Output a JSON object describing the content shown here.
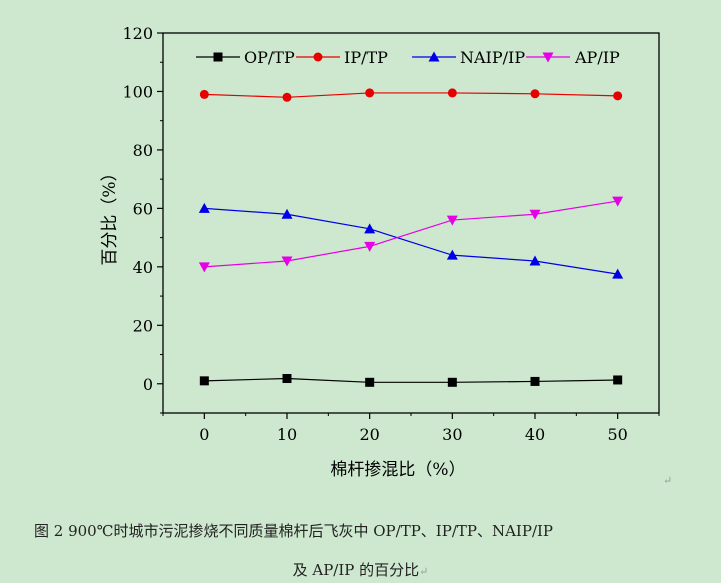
{
  "colors": {
    "background": "#cde8cf",
    "axis": "#000000",
    "OP/TP": "#000000",
    "IP/TP": "#e60000",
    "NAIP/IP": "#0000e6",
    "AP/IP": "#e600e6"
  },
  "caption": {
    "line1": "图 2 900℃时城市污泥掺烧不同质量棉杆后飞灰中 OP/TP、IP/TP、NAIP/IP",
    "line2": "及 AP/IP 的百分比",
    "return_mark": "↵"
  },
  "chart_data": {
    "type": "line",
    "xlabel": "棉杆掺混比（%）",
    "ylabel": "百分比（%）",
    "xlim": [
      -5,
      55
    ],
    "ylim": [
      -10,
      120
    ],
    "x_ticks": [
      0,
      10,
      20,
      30,
      40,
      50
    ],
    "y_ticks": [
      0,
      20,
      40,
      60,
      80,
      100,
      120
    ],
    "legend_position": "top",
    "grid": false,
    "x": [
      0,
      10,
      20,
      30,
      40,
      50
    ],
    "series": [
      {
        "name": "OP/TP",
        "marker": "square",
        "values": [
          1,
          1.8,
          0.5,
          0.5,
          0.8,
          1.3
        ]
      },
      {
        "name": "IP/TP",
        "marker": "circle",
        "values": [
          99,
          98,
          99.5,
          99.5,
          99.2,
          98.5
        ]
      },
      {
        "name": "NAIP/IP",
        "marker": "triangle-up",
        "values": [
          60,
          58,
          53,
          44,
          42,
          37.5
        ]
      },
      {
        "name": "AP/IP",
        "marker": "triangle-down",
        "values": [
          40,
          42,
          47,
          56,
          58,
          62.5
        ]
      }
    ]
  }
}
